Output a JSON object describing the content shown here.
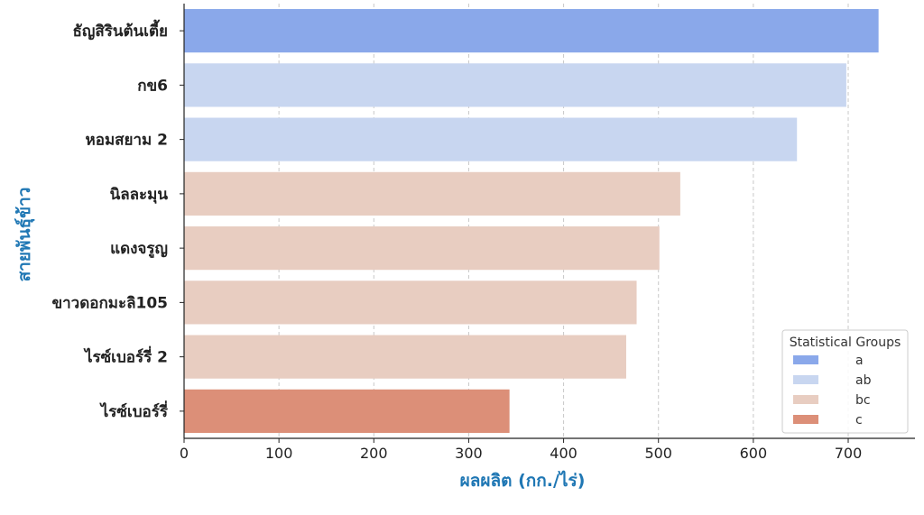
{
  "chart_data": {
    "type": "bar",
    "orientation": "horizontal",
    "title": "",
    "xlabel": "ผลผลิต (กก./ไร่)",
    "ylabel": "สายพันธุ์ข้าว",
    "xlim": [
      0,
      765
    ],
    "xticks": [
      0,
      100,
      200,
      300,
      400,
      500,
      600,
      700
    ],
    "grid": "vertical dashed",
    "categories": [
      "ธัญสิรินต้นเตี้ย",
      "กข6",
      "หอมสยาม 2",
      "นิลละมุน",
      "แดงจรูญ",
      "ขาวดอกมะลิ105",
      "ไรซ์เบอร์รี่ 2",
      "ไรซ์เบอร์รี่"
    ],
    "values": [
      732,
      698,
      646,
      523,
      501,
      477,
      466,
      343
    ],
    "groups": [
      "a",
      "ab",
      "ab",
      "bc",
      "bc",
      "bc",
      "bc",
      "c"
    ],
    "legend": {
      "title": "Statistical Groups",
      "placement": "lower-right",
      "entries": [
        {
          "label": "a",
          "color": "#8aa8ea"
        },
        {
          "label": "ab",
          "color": "#c8d6f0"
        },
        {
          "label": "bc",
          "color": "#e8cdc1"
        },
        {
          "label": "c",
          "color": "#dc8f78"
        }
      ]
    },
    "axis_title_color": "#1f77b4"
  }
}
